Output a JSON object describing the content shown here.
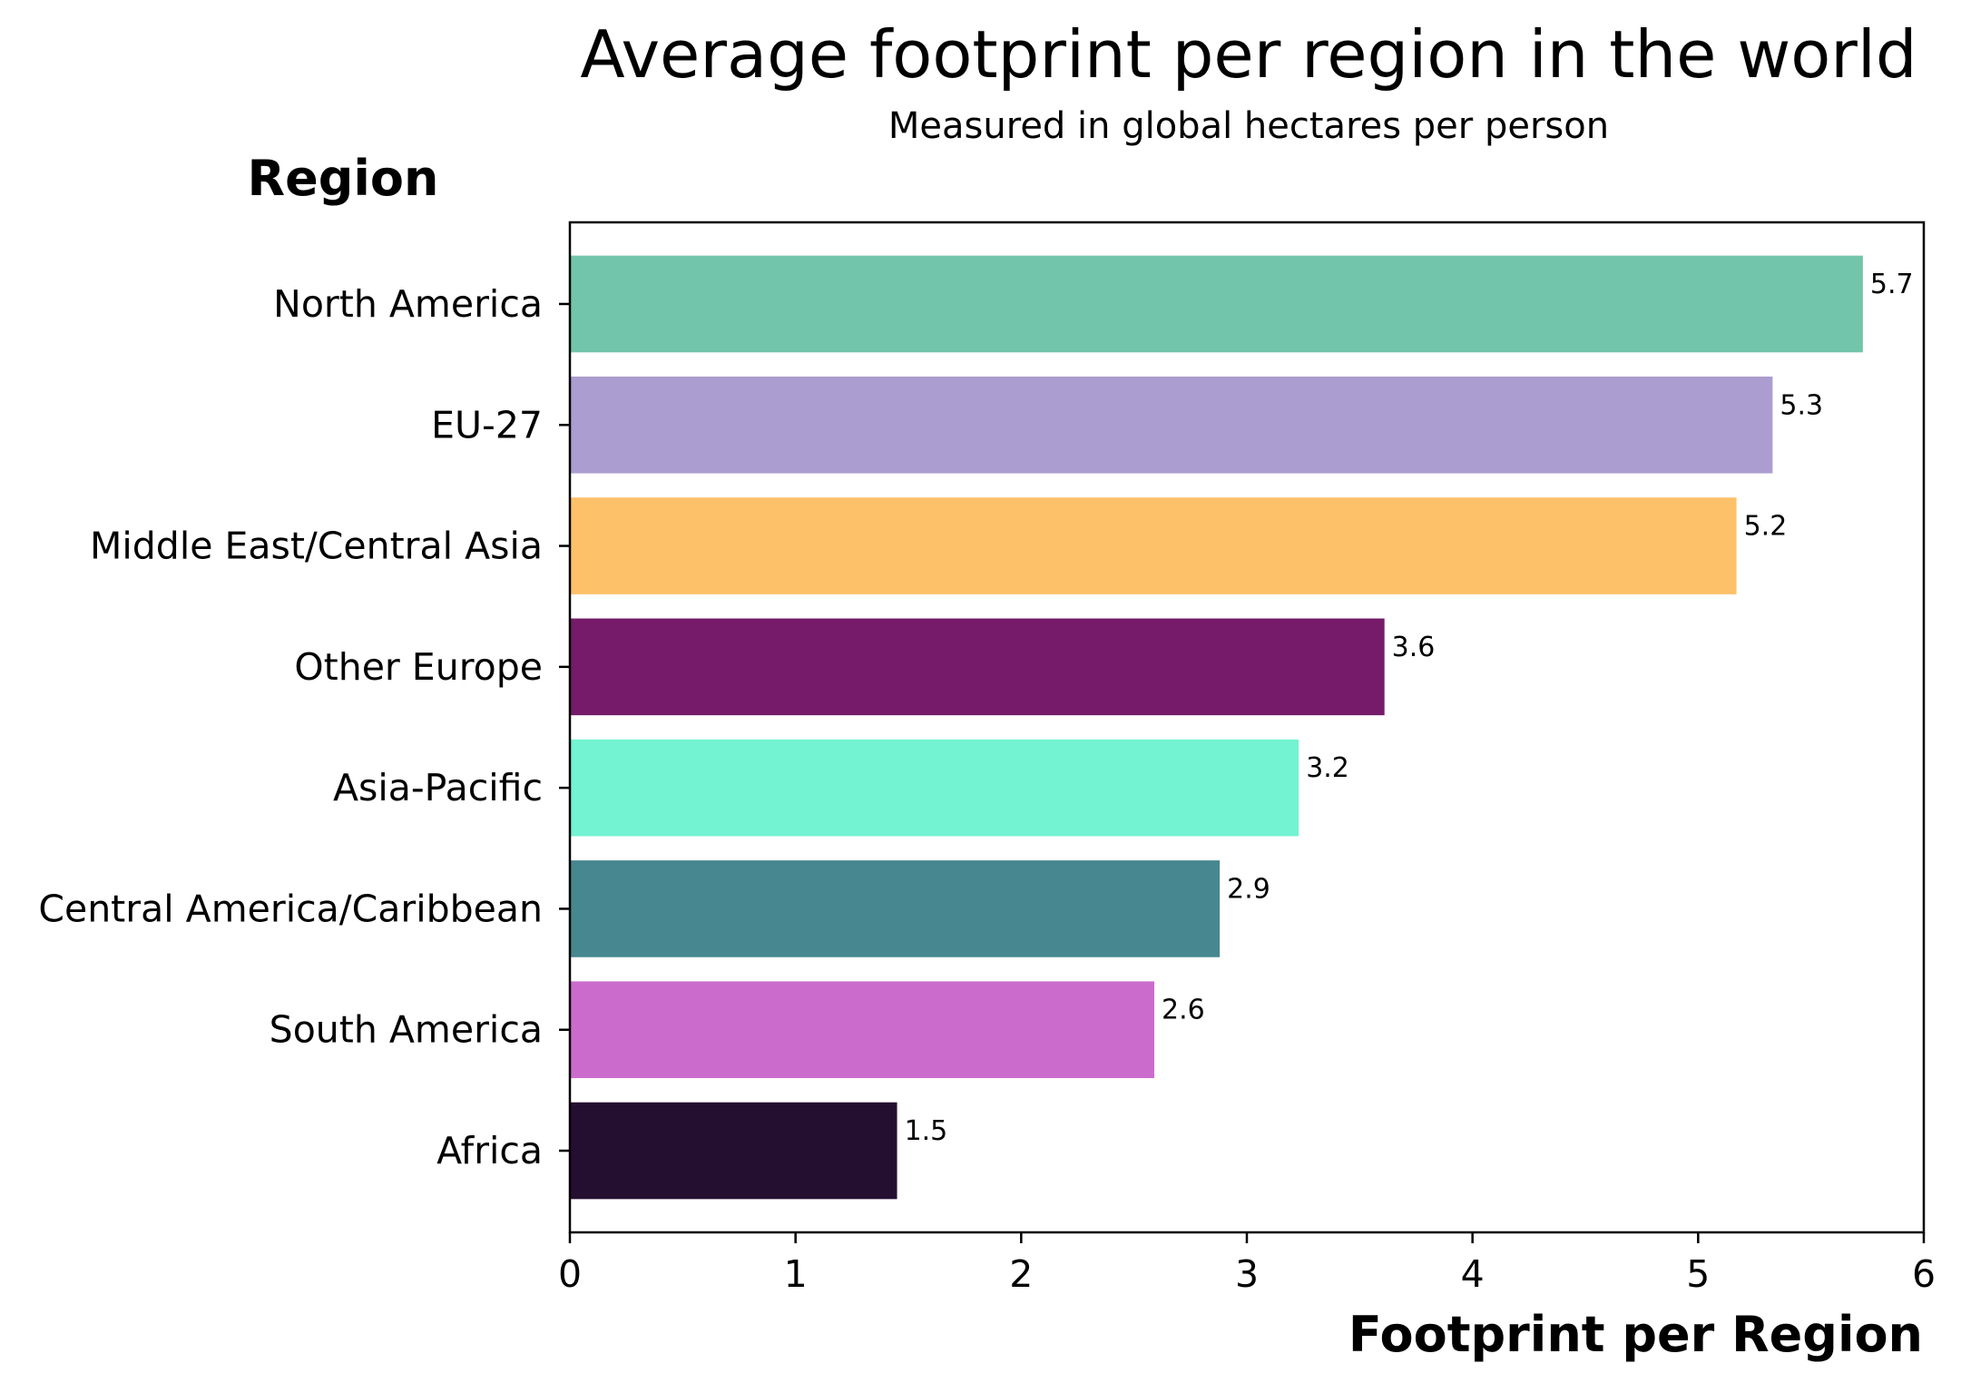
{
  "chart_data": {
    "type": "bar",
    "orientation": "horizontal",
    "title": "Average footprint per region in the world",
    "subtitle": "Measured in global hectares per person",
    "xlabel": "Footprint per Region",
    "ylabel": "Region",
    "xlim": [
      0,
      6
    ],
    "xticks": [
      0,
      1,
      2,
      3,
      4,
      5,
      6
    ],
    "xtick_labels": [
      "0",
      "1",
      "2",
      "3",
      "4",
      "5",
      "6"
    ],
    "grid": false,
    "categories": [
      "North America",
      "EU-27",
      "Middle East/Central Asia",
      "Other Europe",
      "Asia-Pacific",
      "Central America/Caribbean",
      "South America",
      "Africa"
    ],
    "values": [
      5.73,
      5.33,
      5.17,
      3.61,
      3.23,
      2.88,
      2.59,
      1.45
    ],
    "data_labels": [
      "5.7",
      "5.3",
      "5.2",
      "3.6",
      "3.2",
      "2.9",
      "2.6",
      "1.5"
    ],
    "colors": [
      "#72c5ab",
      "#ab9dcf",
      "#fdc16a",
      "#751b69",
      "#73f3d2",
      "#468790",
      "#cb6ccc",
      "#250f31"
    ]
  }
}
